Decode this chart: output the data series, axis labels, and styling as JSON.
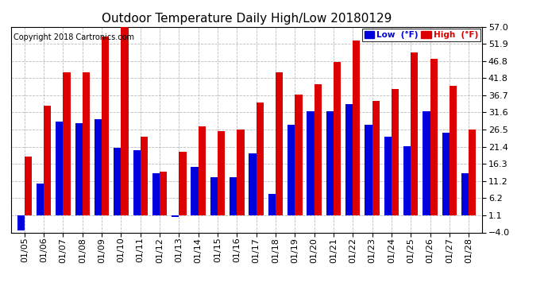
{
  "title": "Outdoor Temperature Daily High/Low 20180129",
  "copyright": "Copyright 2018 Cartronics.com",
  "legend_low": "Low  (°F)",
  "legend_high": "High  (°F)",
  "dates": [
    "01/05",
    "01/06",
    "01/07",
    "01/08",
    "01/09",
    "01/10",
    "01/11",
    "01/12",
    "01/13",
    "01/14",
    "01/15",
    "01/16",
    "01/17",
    "01/18",
    "01/19",
    "01/20",
    "01/21",
    "01/22",
    "01/23",
    "01/24",
    "01/25",
    "01/26",
    "01/27",
    "01/28"
  ],
  "low_values": [
    -3.5,
    10.5,
    29.0,
    28.5,
    29.5,
    21.0,
    20.5,
    13.5,
    0.5,
    15.5,
    12.5,
    12.5,
    19.5,
    7.5,
    28.0,
    32.0,
    32.0,
    34.0,
    28.0,
    24.5,
    21.5,
    32.0,
    25.5,
    13.5
  ],
  "high_values": [
    18.5,
    33.5,
    43.5,
    43.5,
    54.0,
    57.0,
    24.5,
    14.0,
    20.0,
    27.5,
    26.0,
    26.5,
    34.5,
    43.5,
    37.0,
    40.0,
    46.5,
    53.0,
    35.0,
    38.5,
    49.5,
    47.5,
    39.5,
    26.5
  ],
  "ylim": [
    -4.0,
    57.0
  ],
  "yticks": [
    -4.0,
    1.1,
    6.2,
    11.2,
    16.3,
    21.4,
    26.5,
    31.6,
    36.7,
    41.8,
    46.8,
    51.9,
    57.0
  ],
  "low_color": "#0000dd",
  "high_color": "#dd0000",
  "bg_color": "#ffffff",
  "grid_color": "#aaaaaa",
  "bar_width": 0.38,
  "title_fontsize": 11,
  "tick_fontsize": 8,
  "copyright_fontsize": 7
}
